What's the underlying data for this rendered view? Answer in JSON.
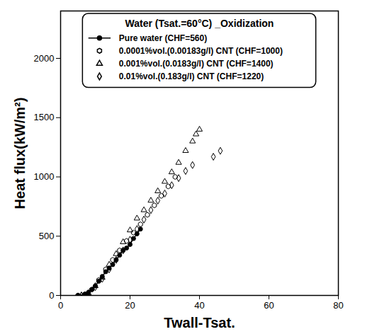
{
  "chart_data": {
    "type": "scatter",
    "title": "Water (Tsat.=60°C) _Oxidization",
    "x_label": "Twall-Tsat.",
    "y_label": "Heat flux(kW/m²)",
    "xlim": [
      0,
      80
    ],
    "xticks": [
      0,
      20,
      40,
      60,
      80
    ],
    "ylim": [
      0,
      2400
    ],
    "yticks": [
      0,
      500,
      1000,
      1500,
      2000
    ],
    "grid": false,
    "legend": "top",
    "series": [
      {
        "name": "Pure water (CHF=560)",
        "type": "line",
        "marker": "circle",
        "line_style": "solid",
        "color": "#000000",
        "x": [
          5,
          7,
          8,
          9,
          10,
          11,
          12,
          13,
          14,
          15,
          16,
          17,
          18,
          19,
          20,
          21,
          22,
          23
        ],
        "values": [
          0,
          10,
          25,
          50,
          80,
          120,
          160,
          200,
          230,
          260,
          300,
          340,
          380,
          400,
          430,
          480,
          520,
          560
        ]
      },
      {
        "name": "0.0001%vol.(0.00183g/l) CNT (CHF=1000)",
        "type": "scatter",
        "marker": "hexagon",
        "color": "#000000",
        "x": [
          5,
          7,
          9,
          11,
          13,
          15,
          17,
          19,
          21,
          23,
          25,
          27,
          29,
          31,
          33
        ],
        "values": [
          0,
          10,
          50,
          130,
          220,
          300,
          380,
          460,
          530,
          600,
          680,
          760,
          840,
          920,
          1000
        ]
      },
      {
        "name": "0.001%vol.(0.0183g/l) CNT (CHF=1400)",
        "type": "scatter",
        "marker": "triangle",
        "color": "#000000",
        "x": [
          6,
          8,
          10,
          12,
          14,
          16,
          18,
          20,
          22,
          24,
          26,
          28,
          30,
          32,
          34,
          36,
          38,
          39,
          40
        ],
        "values": [
          0,
          20,
          80,
          150,
          260,
          350,
          450,
          550,
          650,
          720,
          800,
          880,
          960,
          1040,
          1120,
          1220,
          1300,
          1360,
          1400
        ]
      },
      {
        "name": "0.01%vol.(0.183g/l) CNT (CHF=1220)",
        "type": "scatter",
        "marker": "diamond",
        "color": "#000000",
        "x": [
          6,
          8,
          10,
          12,
          14,
          16,
          18,
          20,
          22,
          24,
          26,
          28,
          30,
          32,
          34,
          36,
          38,
          44,
          46
        ],
        "values": [
          0,
          20,
          70,
          140,
          220,
          300,
          380,
          470,
          560,
          640,
          720,
          800,
          860,
          930,
          990,
          1050,
          1100,
          1170,
          1220
        ]
      }
    ]
  }
}
